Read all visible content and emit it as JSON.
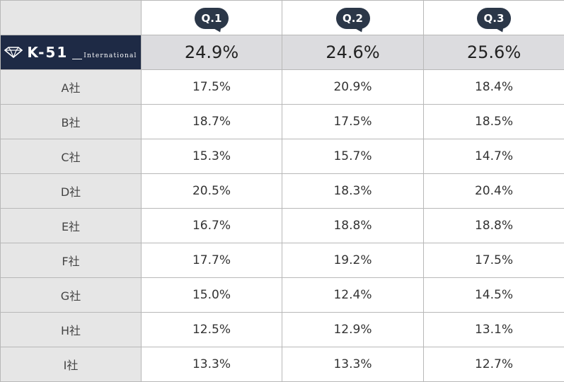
{
  "header": {
    "quarters": [
      "Q.1",
      "Q.2",
      "Q.3"
    ]
  },
  "brand": {
    "name": "K-51",
    "suffix": "International"
  },
  "totals": [
    "24.9%",
    "24.6%",
    "25.6%"
  ],
  "rows": [
    {
      "company": "A社",
      "values": [
        "17.5%",
        "20.9%",
        "18.4%"
      ]
    },
    {
      "company": "B社",
      "values": [
        "18.7%",
        "17.5%",
        "18.5%"
      ]
    },
    {
      "company": "C社",
      "values": [
        "15.3%",
        "15.7%",
        "14.7%"
      ]
    },
    {
      "company": "D社",
      "values": [
        "20.5%",
        "18.3%",
        "20.4%"
      ]
    },
    {
      "company": "E社",
      "values": [
        "16.7%",
        "18.8%",
        "18.8%"
      ]
    },
    {
      "company": "F社",
      "values": [
        "17.7%",
        "19.2%",
        "17.5%"
      ]
    },
    {
      "company": "G社",
      "values": [
        "15.0%",
        "12.4%",
        "14.5%"
      ]
    },
    {
      "company": "H社",
      "values": [
        "12.5%",
        "12.9%",
        "13.1%"
      ]
    },
    {
      "company": "I社",
      "values": [
        "13.3%",
        "13.3%",
        "12.7%"
      ]
    }
  ],
  "colors": {
    "brand_bg": "#1e2a45",
    "bubble_bg": "#2b3748",
    "label_bg": "#e6e6e6",
    "total_bg": "#dcdcdf"
  },
  "icons": {
    "logo": "diamond-icon"
  }
}
